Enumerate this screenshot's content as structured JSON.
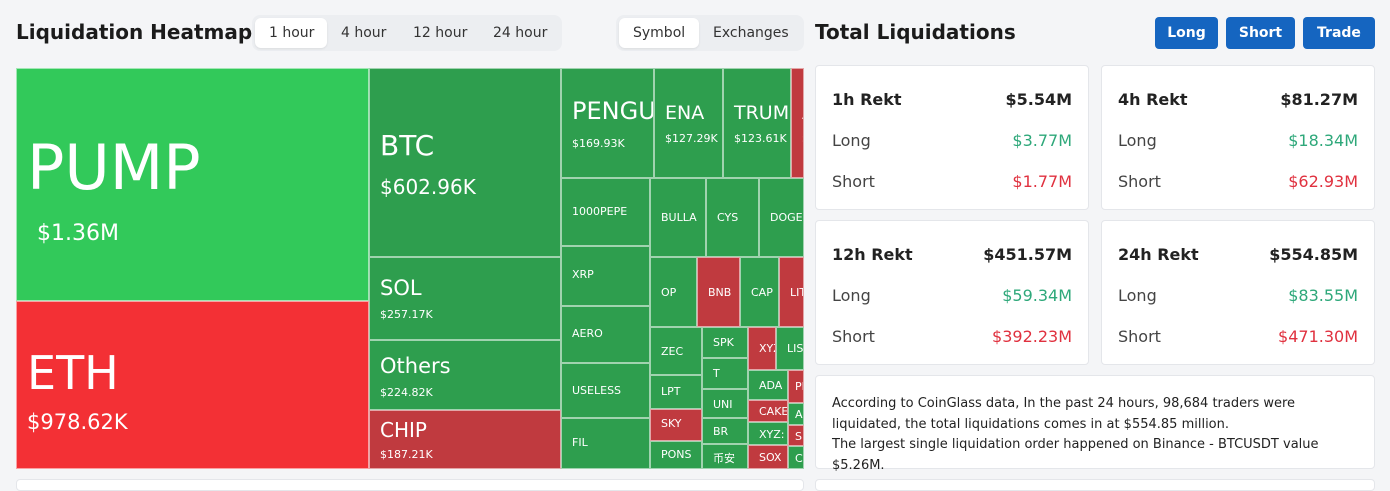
{
  "heatmap": {
    "title": "Liquidation Heatmap",
    "time_tabs": [
      "1 hour",
      "4 hour",
      "12 hour",
      "24 hour"
    ],
    "active_time_tab": "1 hour",
    "view_tabs": [
      "Symbol",
      "Exchanges"
    ],
    "active_view_tab": "Symbol",
    "tiles": [
      {
        "symbol": "PUMP",
        "value": "$1.36M",
        "tone": "bright"
      },
      {
        "symbol": "ETH",
        "value": "$978.62K",
        "tone": "bright-red"
      },
      {
        "symbol": "BTC",
        "value": "$602.96K",
        "tone": "green"
      },
      {
        "symbol": "SOL",
        "value": "$257.17K",
        "tone": "green"
      },
      {
        "symbol": "Others",
        "value": "$224.82K",
        "tone": "green"
      },
      {
        "symbol": "CHIP",
        "value": "$187.21K",
        "tone": "red"
      },
      {
        "symbol": "PENGU",
        "value": "$169.93K",
        "tone": "green"
      },
      {
        "symbol": "ENA",
        "value": "$127.29K",
        "tone": "green"
      },
      {
        "symbol": "TRUMP",
        "value": "$123.61K",
        "tone": "green"
      },
      {
        "symbol": "A",
        "value": "$",
        "tone": "red"
      },
      {
        "symbol": "1000PEPE",
        "value": "",
        "tone": "green"
      },
      {
        "symbol": "XRP",
        "value": "",
        "tone": "green"
      },
      {
        "symbol": "AERO",
        "value": "",
        "tone": "green"
      },
      {
        "symbol": "USELESS",
        "value": "",
        "tone": "green"
      },
      {
        "symbol": "FIL",
        "value": "",
        "tone": "green"
      },
      {
        "symbol": "BULLA",
        "value": "",
        "tone": "green"
      },
      {
        "symbol": "CYS",
        "value": "",
        "tone": "green"
      },
      {
        "symbol": "DOGE",
        "value": "",
        "tone": "green"
      },
      {
        "symbol": "OP",
        "value": "",
        "tone": "green"
      },
      {
        "symbol": "BNB",
        "value": "",
        "tone": "red"
      },
      {
        "symbol": "CAP",
        "value": "",
        "tone": "green"
      },
      {
        "symbol": "LIT",
        "value": "",
        "tone": "red"
      },
      {
        "symbol": "ZEC",
        "value": "",
        "tone": "green"
      },
      {
        "symbol": "LPT",
        "value": "",
        "tone": "green"
      },
      {
        "symbol": "SKY",
        "value": "",
        "tone": "red"
      },
      {
        "symbol": "PONS",
        "value": "",
        "tone": "green"
      },
      {
        "symbol": "SPK",
        "value": "",
        "tone": "green"
      },
      {
        "symbol": "T",
        "value": "",
        "tone": "green"
      },
      {
        "symbol": "UNI",
        "value": "",
        "tone": "green"
      },
      {
        "symbol": "BR",
        "value": "",
        "tone": "green"
      },
      {
        "symbol": "币安",
        "value": "",
        "tone": "green"
      },
      {
        "symbol": "XYZ",
        "value": "",
        "tone": "red"
      },
      {
        "symbol": "LIS",
        "value": "",
        "tone": "green"
      },
      {
        "symbol": "ADA",
        "value": "",
        "tone": "green"
      },
      {
        "symbol": "CAKE",
        "value": "",
        "tone": "red"
      },
      {
        "symbol": "XYZ:",
        "value": "",
        "tone": "green"
      },
      {
        "symbol": "SOX",
        "value": "",
        "tone": "red"
      },
      {
        "symbol": "PI",
        "value": "",
        "tone": "red"
      },
      {
        "symbol": "A",
        "value": "",
        "tone": "green"
      },
      {
        "symbol": "S",
        "value": "",
        "tone": "red"
      },
      {
        "symbol": "C",
        "value": "",
        "tone": "green"
      }
    ]
  },
  "totals": {
    "title": "Total Liquidations",
    "buttons": [
      "Long",
      "Short",
      "Trade"
    ],
    "cards": [
      {
        "label": "1h Rekt",
        "total": "$5.54M",
        "long_label": "Long",
        "long": "$3.77M",
        "short_label": "Short",
        "short": "$1.77M"
      },
      {
        "label": "4h Rekt",
        "total": "$81.27M",
        "long_label": "Long",
        "long": "$18.34M",
        "short_label": "Short",
        "short": "$62.93M"
      },
      {
        "label": "12h Rekt",
        "total": "$451.57M",
        "long_label": "Long",
        "long": "$59.34M",
        "short_label": "Short",
        "short": "$392.23M"
      },
      {
        "label": "24h Rekt",
        "total": "$554.85M",
        "long_label": "Long",
        "long": "$83.55M",
        "short_label": "Short",
        "short": "$471.30M"
      }
    ],
    "info_lines": [
      "According to CoinGlass data, In the past 24 hours, 98,684 traders were liquidated, the total liquidations comes in at $554.85 million.",
      "The largest single liquidation order happened on Binance - BTCUSDT value $5.26M."
    ]
  },
  "colors": {
    "green_tile": "#2e9e4e",
    "bright_green_tile": "#32c95a",
    "red_tile": "#c03a3f",
    "bright_red_tile": "#f33035",
    "button_blue": "#1565c0",
    "long_green": "#2ea87a",
    "short_red": "#e0313f"
  }
}
